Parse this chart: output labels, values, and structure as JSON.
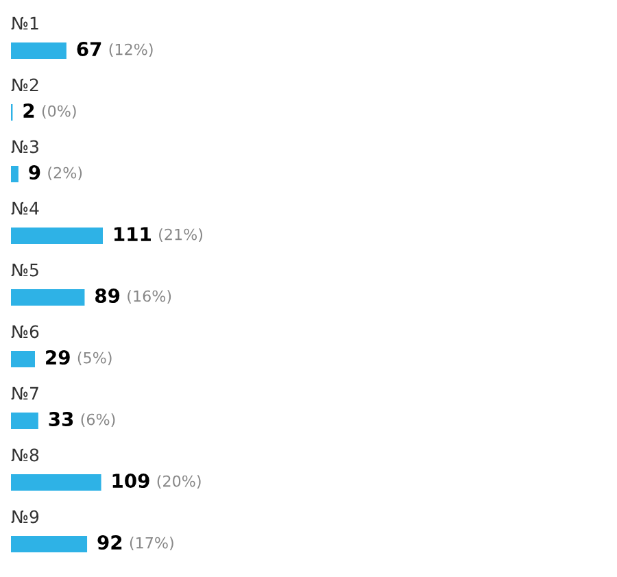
{
  "chart_data": {
    "type": "bar",
    "orientation": "horizontal",
    "categories": [
      "№1",
      "№2",
      "№3",
      "№4",
      "№5",
      "№6",
      "№7",
      "№8",
      "№9"
    ],
    "values": [
      67,
      2,
      9,
      111,
      89,
      29,
      33,
      109,
      92
    ],
    "value_labels": [
      "67 (12%)",
      "2 (0%)",
      "9 (2%)",
      "111 (21%)",
      "89 (16%)",
      "29 (5%)",
      "33 (6%)",
      "109 (20%)",
      "92 (17%)"
    ],
    "color": "#2eb2e6"
  }
}
